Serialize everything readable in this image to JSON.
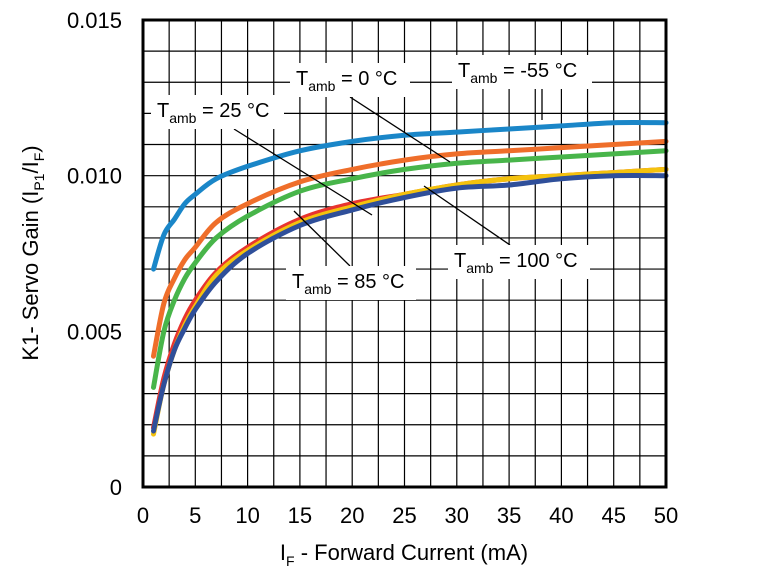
{
  "chart_data": {
    "type": "line",
    "xlabel_main": "I",
    "xlabel_sub": "F",
    "xlabel_rest": " -  Forward Current  (mA)",
    "ylabel_main": "K1- Servo Gain (I",
    "ylabel_sub1": "P1",
    "ylabel_mid": "/I",
    "ylabel_sub2": "F",
    "ylabel_end": ")",
    "xlim": [
      0,
      50
    ],
    "ylim": [
      0,
      0.015
    ],
    "xticks": [
      0,
      5,
      10,
      15,
      20,
      25,
      30,
      35,
      40,
      45,
      50
    ],
    "xtick_labels": [
      "0",
      "5",
      "10",
      "15",
      "20",
      "25",
      "30",
      "35",
      "40",
      "45",
      "50"
    ],
    "yticks": [
      0,
      0.005,
      0.01,
      0.015
    ],
    "ytick_labels": [
      "0",
      "0.005",
      "0.010",
      "0.015"
    ],
    "grid": true,
    "series": [
      {
        "name": "T_amb = -55 °C",
        "color": "#1a86c8",
        "x": [
          1,
          2,
          3,
          4,
          5,
          7,
          10,
          15,
          20,
          25,
          30,
          35,
          40,
          45,
          50
        ],
        "values": [
          0.007,
          0.0081,
          0.0086,
          0.0091,
          0.0094,
          0.0099,
          0.0103,
          0.0108,
          0.0111,
          0.0113,
          0.0114,
          0.0115,
          0.0116,
          0.0117,
          0.0117
        ]
      },
      {
        "name": "T_amb = 25 °C",
        "color": "#ef6e2a",
        "x": [
          1,
          2,
          3,
          4,
          5,
          7,
          10,
          15,
          20,
          25,
          30,
          35,
          40,
          45,
          50
        ],
        "values": [
          0.0042,
          0.0059,
          0.0067,
          0.0073,
          0.0077,
          0.0085,
          0.0091,
          0.0098,
          0.0102,
          0.0105,
          0.0107,
          0.0108,
          0.0109,
          0.011,
          0.0111
        ]
      },
      {
        "name": "T_amb = 0 °C",
        "color": "#48b54a",
        "x": [
          1,
          2,
          3,
          4,
          5,
          7,
          10,
          15,
          20,
          25,
          30,
          35,
          40,
          45,
          50
        ],
        "values": [
          0.0032,
          0.005,
          0.006,
          0.0067,
          0.0072,
          0.008,
          0.0087,
          0.0095,
          0.0099,
          0.0102,
          0.0104,
          0.0105,
          0.0106,
          0.0107,
          0.0108
        ]
      },
      {
        "name": "T_amb = 85 °C",
        "color": "#e8342f",
        "x": [
          1,
          2,
          3,
          4,
          5,
          7,
          10,
          15,
          20,
          25,
          30,
          35,
          40,
          45,
          50
        ],
        "values": [
          0.0019,
          0.0035,
          0.0046,
          0.0054,
          0.006,
          0.0069,
          0.0077,
          0.0086,
          0.0091,
          0.0094,
          0.0097,
          0.0099,
          0.01,
          0.0101,
          0.0102
        ]
      },
      {
        "name": "T_amb = 100 °C (yellow)",
        "color": "#f4c20d",
        "x": [
          1,
          2,
          3,
          4,
          5,
          7,
          10,
          15,
          20,
          25,
          30,
          35,
          40,
          45,
          50
        ],
        "values": [
          0.0017,
          0.0033,
          0.0044,
          0.0052,
          0.0058,
          0.0068,
          0.0076,
          0.0085,
          0.009,
          0.0094,
          0.0097,
          0.0099,
          0.01,
          0.0101,
          0.0102
        ]
      },
      {
        "name": "T_amb = 100 °C",
        "color": "#2f4f9a",
        "x": [
          1,
          2,
          3,
          4,
          5,
          7,
          10,
          15,
          20,
          25,
          30,
          35,
          40,
          45,
          50
        ],
        "values": [
          0.0018,
          0.0033,
          0.0044,
          0.0051,
          0.0057,
          0.0066,
          0.0075,
          0.0084,
          0.0089,
          0.0093,
          0.0096,
          0.0097,
          0.0099,
          0.01,
          0.01
        ]
      }
    ],
    "annotations": [
      {
        "id": "m55",
        "main": "T",
        "sub": "amb",
        "rest": " = -55 °C",
        "target_x": 38,
        "target_y": 0.0117
      },
      {
        "id": "p0",
        "main": "T",
        "sub": "amb",
        "rest": " = 0 °C",
        "target_x": 27,
        "target_y": 0.0103
      },
      {
        "id": "p25",
        "main": "T",
        "sub": "amb",
        "rest": " = 25 °C",
        "target_x": 22,
        "target_y": 0.0102
      },
      {
        "id": "p85",
        "main": "T",
        "sub": "amb",
        "rest": " = 85 °C",
        "target_x": 15,
        "target_y": 0.0087
      },
      {
        "id": "p100",
        "main": "T",
        "sub": "amb",
        "rest": " = 100 °C",
        "target_x": 28,
        "target_y": 0.0097
      }
    ]
  }
}
